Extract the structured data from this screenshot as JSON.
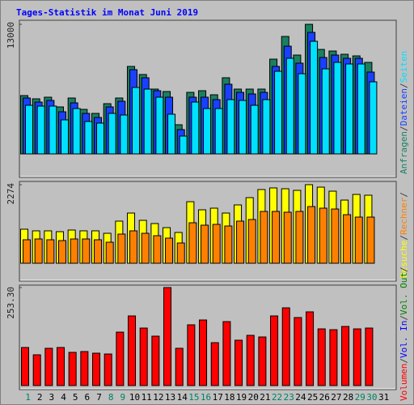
{
  "chart_data": {
    "type": "bar",
    "title": "Tages-Statistik im Monat Juni 2019",
    "title_color": "#0000ff",
    "separator": "/",
    "categories": [
      "1",
      "2",
      "3",
      "4",
      "5",
      "6",
      "7",
      "8",
      "9",
      "10",
      "11",
      "12",
      "13",
      "14",
      "15",
      "16",
      "17",
      "18",
      "19",
      "20",
      "21",
      "22",
      "23",
      "24",
      "25",
      "26",
      "27",
      "28",
      "29",
      "30",
      "31"
    ],
    "category_colors": [
      "#008060",
      "#000000",
      "#000000",
      "#000000",
      "#000000",
      "#000000",
      "#000000",
      "#008060",
      "#008060",
      "#000000",
      "#000000",
      "#000000",
      "#000000",
      "#000000",
      "#008060",
      "#008060",
      "#000000",
      "#000000",
      "#000000",
      "#000000",
      "#000000",
      "#008060",
      "#008060",
      "#000000",
      "#000000",
      "#000000",
      "#000000",
      "#000000",
      "#008060",
      "#008060",
      "#000000"
    ],
    "panels": [
      {
        "ylim": [
          0,
          13000
        ],
        "yticks": [
          13000
        ],
        "series": [
          {
            "name": "Anfragen",
            "color": "#1a8060",
            "values": [
              5850,
              5525,
              5688,
              4713,
              5606,
              4469,
              4063,
              5038,
              5606,
              8775,
              7963,
              6500,
              6256,
              2925,
              6175,
              6338,
              5931,
              7638,
              6500,
              6500,
              6500,
              9506,
              11781,
              9913,
              13000,
              10481,
              10319,
              9994,
              9831,
              9181,
              null
            ]
          },
          {
            "name": "Dateien",
            "color": "#1a40ff",
            "values": [
              5606,
              5200,
              5363,
              4225,
              5119,
              4063,
              3656,
              4713,
              5281,
              8450,
              7638,
              6338,
              5688,
              2438,
              5688,
              5688,
              5444,
              6988,
              6175,
              6013,
              6175,
              8775,
              10806,
              9100,
              12188,
              9669,
              9913,
              9588,
              9588,
              8206,
              null
            ]
          },
          {
            "name": "Seiten",
            "color": "#00e0ff",
            "values": [
              4875,
              4794,
              4794,
              3413,
              4550,
              3250,
              3088,
              4063,
              3900,
              6663,
              6500,
              5688,
              3981,
              1788,
              5200,
              4550,
              4550,
              5444,
              5363,
              4875,
              5444,
              8288,
              9588,
              8044,
              11294,
              8531,
              9181,
              9019,
              9019,
              7231,
              null
            ]
          }
        ]
      },
      {
        "ylim": [
          0,
          2274
        ],
        "yticks": [
          2274
        ],
        "series": [
          {
            "name": "Besuche",
            "color": "#ffff00",
            "values": [
              985,
              938,
              938,
              914,
              961,
              938,
              938,
              867,
              1219,
              1453,
              1242,
              1149,
              1031,
              891,
              1781,
              1547,
              1594,
              1453,
              1688,
              1899,
              2133,
              2180,
              2156,
              2110,
              2274,
              2203,
              2086,
              1828,
              1992,
              1969,
              null
            ]
          },
          {
            "name": "Rechner",
            "color": "#ff8000",
            "values": [
              680,
              703,
              680,
              656,
              703,
              703,
              680,
              609,
              844,
              938,
              867,
              797,
              727,
              586,
              1172,
              1102,
              1125,
              1078,
              1219,
              1266,
              1500,
              1500,
              1477,
              1500,
              1641,
              1594,
              1570,
              1406,
              1336,
              1336,
              null
            ]
          }
        ]
      },
      {
        "ylim": [
          0,
          253.3
        ],
        "yticks": [
          {
            "value": 253.3,
            "label": "253.30"
          }
        ],
        "series": [
          {
            "name": "Volumen",
            "color": "#ff0000",
            "values": [
              98.4,
              79.5,
              96.3,
              98.4,
              85.8,
              87.9,
              83.7,
              81.6,
              138.1,
              180.0,
              148.6,
              127.7,
              253.3,
              96.3,
              157.0,
              169.5,
              110.9,
              165.3,
              117.2,
              129.8,
              125.6,
              180.0,
              200.9,
              175.8,
              190.5,
              146.5,
              144.4,
              152.8,
              146.5,
              148.6,
              null
            ]
          }
        ],
        "legend_only": [
          {
            "name": "Vol. In",
            "color": "#0000ff"
          },
          {
            "name": "Vol. Out",
            "color": "#008000"
          }
        ]
      }
    ]
  }
}
